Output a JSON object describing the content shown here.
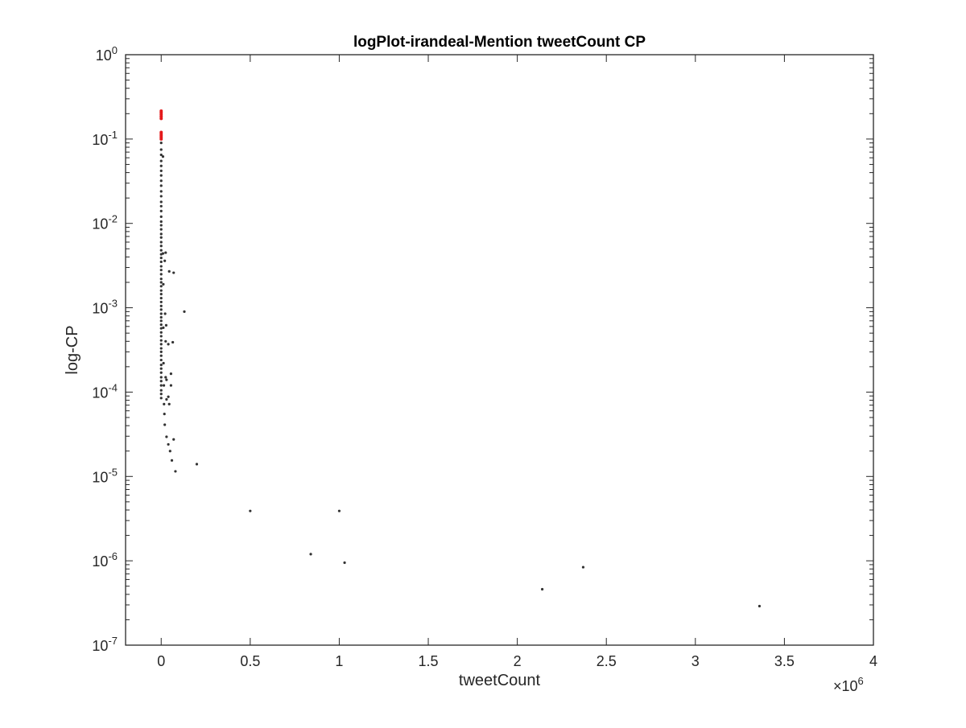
{
  "chart_data": {
    "type": "scatter",
    "title": "logPlot-irandeal-Mention tweetCount CP",
    "xlabel": "tweetCount",
    "ylabel": "log-CP",
    "x_scale": "linear",
    "y_scale": "log",
    "x_multiplier_label": "×10",
    "x_multiplier_exponent": "6",
    "xlim": [
      -0.2,
      4.0
    ],
    "ylim": [
      1e-07,
      1
    ],
    "x_ticks": [
      {
        "value": 0,
        "label": "0"
      },
      {
        "value": 0.5,
        "label": "0.5"
      },
      {
        "value": 1,
        "label": "1"
      },
      {
        "value": 1.5,
        "label": "1.5"
      },
      {
        "value": 2,
        "label": "2"
      },
      {
        "value": 2.5,
        "label": "2.5"
      },
      {
        "value": 3,
        "label": "3"
      },
      {
        "value": 3.5,
        "label": "3.5"
      },
      {
        "value": 4,
        "label": "4"
      }
    ],
    "y_ticks": [
      {
        "exp": 0,
        "base": "10",
        "sup": "0"
      },
      {
        "exp": -1,
        "base": "10",
        "sup": "-1"
      },
      {
        "exp": -2,
        "base": "10",
        "sup": "-2"
      },
      {
        "exp": -3,
        "base": "10",
        "sup": "-3"
      },
      {
        "exp": -4,
        "base": "10",
        "sup": "-4"
      },
      {
        "exp": -5,
        "base": "10",
        "sup": "-5"
      },
      {
        "exp": -6,
        "base": "10",
        "sup": "-6"
      },
      {
        "exp": -7,
        "base": "10",
        "sup": "-7"
      }
    ],
    "grid": false,
    "series": [
      {
        "color": "#e41a1c",
        "marker": "dot",
        "points": [
          [
            0,
            0.215
          ],
          [
            0,
            0.205
          ],
          [
            0,
            0.195
          ],
          [
            0,
            0.185
          ],
          [
            0,
            0.175
          ],
          [
            0,
            0.12
          ],
          [
            0,
            0.115
          ],
          [
            0,
            0.11
          ],
          [
            0,
            0.105
          ],
          [
            0,
            0.1
          ]
        ]
      },
      {
        "color": "#333333",
        "marker": "dot",
        "points": [
          [
            0,
            0.09
          ],
          [
            0,
            0.075
          ],
          [
            0,
            0.065
          ],
          [
            0,
            0.055
          ],
          [
            0,
            0.048
          ],
          [
            0,
            0.042
          ],
          [
            0,
            0.037
          ],
          [
            0,
            0.032
          ],
          [
            0,
            0.028
          ],
          [
            0,
            0.024
          ],
          [
            0,
            0.021
          ],
          [
            0,
            0.018
          ],
          [
            0,
            0.016
          ],
          [
            0,
            0.014
          ],
          [
            0,
            0.012
          ],
          [
            0,
            0.0105
          ],
          [
            0,
            0.0095
          ],
          [
            0,
            0.0085
          ],
          [
            0,
            0.0075
          ],
          [
            0,
            0.0068
          ],
          [
            0,
            0.006
          ],
          [
            0,
            0.0054
          ],
          [
            0,
            0.0048
          ],
          [
            0,
            0.0043
          ],
          [
            0,
            0.0039
          ],
          [
            0,
            0.0035
          ],
          [
            0,
            0.0031
          ],
          [
            0,
            0.0028
          ],
          [
            0,
            0.0025
          ],
          [
            0,
            0.0022
          ],
          [
            0,
            0.002
          ],
          [
            0,
            0.0018
          ],
          [
            0,
            0.0016
          ],
          [
            0,
            0.00145
          ],
          [
            0,
            0.0013
          ],
          [
            0,
            0.00117
          ],
          [
            0,
            0.00105
          ],
          [
            0,
            0.00095
          ],
          [
            0,
            0.00085
          ],
          [
            0,
            0.00077
          ],
          [
            0,
            0.0007
          ],
          [
            0,
            0.00063
          ],
          [
            0,
            0.00057
          ],
          [
            0,
            0.00051
          ],
          [
            0,
            0.00046
          ],
          [
            0,
            0.00041
          ],
          [
            0,
            0.00037
          ],
          [
            0,
            0.00033
          ],
          [
            0,
            0.0003
          ],
          [
            0,
            0.00027
          ],
          [
            0,
            0.00024
          ],
          [
            0,
            0.00021
          ],
          [
            0,
            0.00019
          ],
          [
            0,
            0.00017
          ],
          [
            0,
            0.00015
          ],
          [
            0,
            0.000135
          ],
          [
            0,
            0.00012
          ],
          [
            0,
            0.000105
          ],
          [
            0,
            9.5e-05
          ],
          [
            0,
            8.5e-05
          ],
          [
            0.01,
            0.062
          ],
          [
            0.01,
            0.0044
          ],
          [
            0.012,
            0.0019
          ],
          [
            0.012,
            0.00058
          ],
          [
            0.013,
            0.00022
          ],
          [
            0.015,
            0.00012
          ],
          [
            0.016,
            7.2e-05
          ],
          [
            0.018,
            5.5e-05
          ],
          [
            0.02,
            0.0036
          ],
          [
            0.022,
            0.00085
          ],
          [
            0.025,
            0.0004
          ],
          [
            0.025,
            0.00015
          ],
          [
            0.025,
            0.0045
          ],
          [
            0.028,
            0.00062
          ],
          [
            0.03,
            0.00014
          ],
          [
            0.03,
            8.2e-05
          ],
          [
            0.02,
            4.1e-05
          ],
          [
            0.03,
            2.95e-05
          ],
          [
            0.04,
            2.4e-05
          ],
          [
            0.05,
            2e-05
          ],
          [
            0.045,
            0.0027
          ],
          [
            0.04,
            0.00037
          ],
          [
            0.04,
            8.8e-05
          ],
          [
            0.07,
            0.0026
          ],
          [
            0.065,
            0.00039
          ],
          [
            0.055,
            0.00012
          ],
          [
            0.045,
            7.2e-05
          ],
          [
            0.055,
            0.000165
          ],
          [
            0.06,
            1.55e-05
          ],
          [
            0.07,
            2.75e-05
          ],
          [
            0.08,
            1.15e-05
          ],
          [
            0.13,
            0.0009
          ],
          [
            0.2,
            1.4e-05
          ],
          [
            0.5,
            3.9e-06
          ],
          [
            1.0,
            3.9e-06
          ],
          [
            0.84,
            1.2e-06
          ],
          [
            1.03,
            9.5e-07
          ],
          [
            2.14,
            4.6e-07
          ],
          [
            2.37,
            8.4e-07
          ],
          [
            3.36,
            2.9e-07
          ]
        ]
      }
    ]
  }
}
